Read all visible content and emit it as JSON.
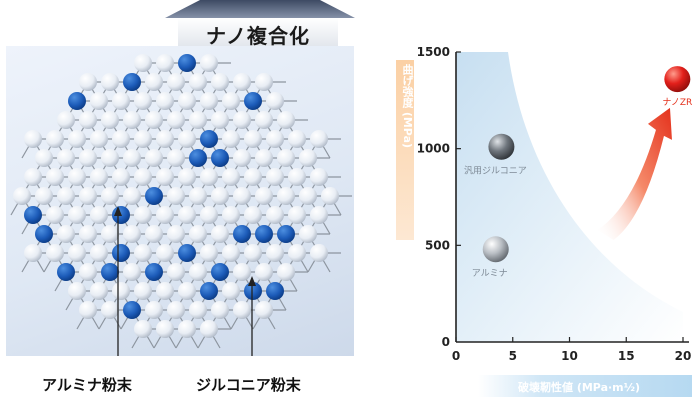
{
  "banner": {
    "label": "ナノ複合化"
  },
  "illustration": {
    "label_alumina": "アルミナ粉末",
    "label_zirconia": "ジルコニア粉末"
  },
  "chart_data": {
    "type": "scatter",
    "title": "",
    "xlabel": "破壊靭性値 (MPa·m½)",
    "ylabel": "曲げ強度 (MPa)",
    "xlim": [
      0,
      20
    ],
    "ylim": [
      0,
      1500
    ],
    "xticks": [
      0,
      5,
      10,
      15,
      20
    ],
    "yticks": [
      500,
      1000,
      1500
    ],
    "points": [
      {
        "label": "アルミナ",
        "x": 3.5,
        "y": 480,
        "color": "#8a8f95"
      },
      {
        "label": "汎用ジルコニア",
        "x": 4,
        "y": 1010,
        "color": "#5c6268"
      },
      {
        "label": "ナノZR",
        "x": 19.5,
        "y": 1360,
        "color": "#e3201b"
      }
    ],
    "arrow": {
      "from": [
        13,
        600
      ],
      "to": [
        18.5,
        1180
      ],
      "color": "#e4311c"
    },
    "grid": false
  }
}
